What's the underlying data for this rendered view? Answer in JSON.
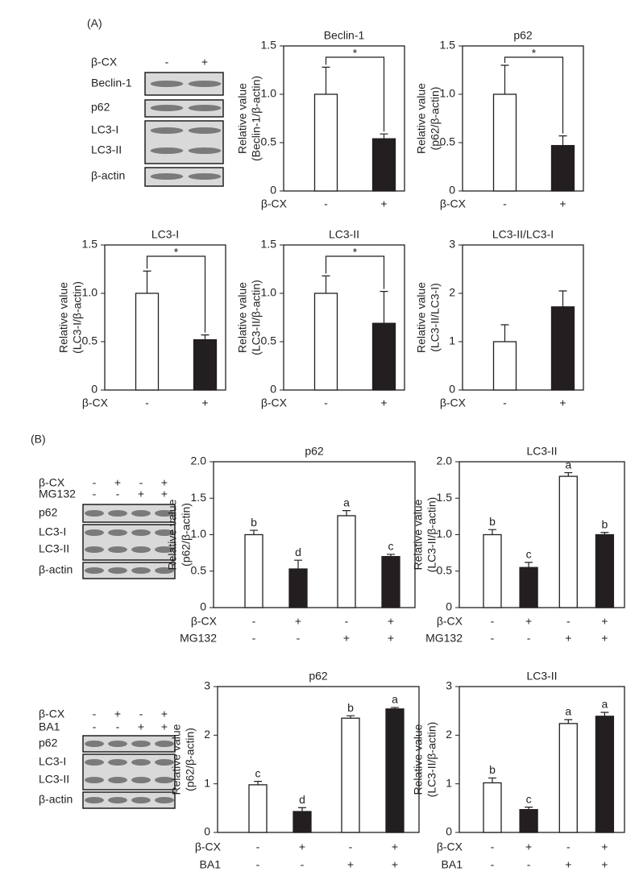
{
  "panels": [
    {
      "label": "(A)"
    },
    {
      "label": "(B)"
    }
  ],
  "blots": [
    {
      "conditions": [
        {
          "name": "β-CX",
          "signs": [
            "-",
            "+"
          ]
        }
      ],
      "bands": [
        "Beclin-1",
        "p62",
        "LC3-I",
        "LC3-II",
        "β-actin"
      ]
    },
    {
      "conditions": [
        {
          "name": "β-CX",
          "signs": [
            "-",
            "+",
            "-",
            "+"
          ]
        },
        {
          "name": "MG132",
          "signs": [
            "-",
            "-",
            "+",
            "+"
          ]
        }
      ],
      "bands": [
        "p62",
        "LC3-I",
        "LC3-II",
        "β-actin"
      ]
    },
    {
      "conditions": [
        {
          "name": "β-CX",
          "signs": [
            "-",
            "+",
            "-",
            "+"
          ]
        },
        {
          "name": "BA1",
          "signs": [
            "-",
            "-",
            "+",
            "+"
          ]
        }
      ],
      "bands": [
        "p62",
        "LC3-I",
        "LC3-II",
        "β-actin"
      ]
    }
  ],
  "chart_data": [
    {
      "type": "bar",
      "title": "Beclin-1",
      "y_label": [
        "Relative value",
        "(Beclin-1/β-actin)"
      ],
      "conditions": [
        {
          "name": "β-CX",
          "signs": [
            "-",
            "+"
          ]
        }
      ],
      "values": [
        1.0,
        0.54
      ],
      "errors": [
        0.28,
        0.05
      ],
      "colors": [
        "#ffffff",
        "#231f20"
      ],
      "ylim": [
        0,
        1.5
      ],
      "yticks": [
        0,
        0.5,
        {
          "value": 1,
          "label": "1.0"
        },
        1.5
      ],
      "significance": "*"
    },
    {
      "type": "bar",
      "title": "p62",
      "y_label": [
        "Relative value",
        "(p62/β-actin)"
      ],
      "conditions": [
        {
          "name": "β-CX",
          "signs": [
            "-",
            "+"
          ]
        }
      ],
      "values": [
        1.0,
        0.47
      ],
      "errors": [
        0.3,
        0.1
      ],
      "colors": [
        "#ffffff",
        "#231f20"
      ],
      "ylim": [
        0,
        1.5
      ],
      "yticks": [
        0,
        0.5,
        {
          "value": 1,
          "label": "1.0"
        },
        1.5
      ],
      "significance": "*"
    },
    {
      "type": "bar",
      "title": "LC3-I",
      "y_label": [
        "Relative value",
        "(LC3-I/β-actin)"
      ],
      "conditions": [
        {
          "name": "β-CX",
          "signs": [
            "-",
            "+"
          ]
        }
      ],
      "values": [
        1.0,
        0.52
      ],
      "errors": [
        0.23,
        0.05
      ],
      "colors": [
        "#ffffff",
        "#231f20"
      ],
      "ylim": [
        0,
        1.5
      ],
      "yticks": [
        0,
        0.5,
        {
          "value": 1,
          "label": "1.0"
        },
        1.5
      ],
      "significance": "*"
    },
    {
      "type": "bar",
      "title": "LC3-II",
      "y_label": [
        "Relative value",
        "(LC3-II/β-actin)"
      ],
      "conditions": [
        {
          "name": "β-CX",
          "signs": [
            "-",
            "+"
          ]
        }
      ],
      "values": [
        1.0,
        0.69
      ],
      "errors": [
        0.18,
        0.33
      ],
      "colors": [
        "#ffffff",
        "#231f20"
      ],
      "ylim": [
        0,
        1.5
      ],
      "yticks": [
        0,
        0.5,
        {
          "value": 1,
          "label": "1.0"
        },
        1.5
      ],
      "significance": "*"
    },
    {
      "type": "bar",
      "title": "LC3-II/LC3-I",
      "y_label": [
        "Relative value",
        "(LC3-II/LC3-I)"
      ],
      "conditions": [
        {
          "name": "β-CX",
          "signs": [
            "-",
            "+"
          ]
        }
      ],
      "values": [
        1.0,
        1.72
      ],
      "errors": [
        0.35,
        0.33
      ],
      "colors": [
        "#ffffff",
        "#231f20"
      ],
      "ylim": [
        0,
        3
      ],
      "yticks": [
        0,
        1,
        2,
        3
      ]
    },
    {
      "type": "bar",
      "title": "p62",
      "y_label": [
        "Relative value",
        "(p62/β-actin)"
      ],
      "conditions": [
        {
          "name": "β-CX",
          "signs": [
            "-",
            "+",
            "-",
            "+"
          ]
        },
        {
          "name": "MG132",
          "signs": [
            "-",
            "-",
            "+",
            "+"
          ]
        }
      ],
      "values": [
        1.0,
        0.53,
        1.26,
        0.7
      ],
      "errors": [
        0.06,
        0.12,
        0.07,
        0.03
      ],
      "annotations": [
        "b",
        "d",
        "a",
        "c"
      ],
      "colors": [
        "#ffffff",
        "#231f20",
        "#ffffff",
        "#231f20"
      ],
      "ylim": [
        0,
        2
      ],
      "yticks": [
        0,
        0.5,
        {
          "value": 1,
          "label": "1.0"
        },
        1.5,
        {
          "value": 2,
          "label": "2.0"
        }
      ]
    },
    {
      "type": "bar",
      "title": "LC3-II",
      "y_label": [
        "Relative value",
        "(LC3-II/β-actin)"
      ],
      "conditions": [
        {
          "name": "β-CX",
          "signs": [
            "-",
            "+",
            "-",
            "+"
          ]
        },
        {
          "name": "MG132",
          "signs": [
            "-",
            "-",
            "+",
            "+"
          ]
        }
      ],
      "values": [
        1.0,
        0.55,
        1.8,
        1.0
      ],
      "errors": [
        0.07,
        0.07,
        0.05,
        0.03
      ],
      "annotations": [
        "b",
        "c",
        "a",
        "b"
      ],
      "colors": [
        "#ffffff",
        "#231f20",
        "#ffffff",
        "#231f20"
      ],
      "ylim": [
        0,
        2
      ],
      "yticks": [
        0,
        0.5,
        {
          "value": 1,
          "label": "1.0"
        },
        1.5,
        {
          "value": 2,
          "label": "2.0"
        }
      ]
    },
    {
      "type": "bar",
      "title": "p62",
      "y_label": [
        "Relative value",
        "(p62/β-actin)"
      ],
      "conditions": [
        {
          "name": "β-CX",
          "signs": [
            "-",
            "+",
            "-",
            "+"
          ]
        },
        {
          "name": "BA1",
          "signs": [
            "-",
            "-",
            "+",
            "+"
          ]
        }
      ],
      "values": [
        0.98,
        0.43,
        2.35,
        2.54
      ],
      "errors": [
        0.07,
        0.08,
        0.05,
        0.03
      ],
      "annotations": [
        "c",
        "d",
        "b",
        "a"
      ],
      "colors": [
        "#ffffff",
        "#231f20",
        "#ffffff",
        "#231f20"
      ],
      "ylim": [
        0,
        3
      ],
      "yticks": [
        0,
        1,
        2,
        3
      ]
    },
    {
      "type": "bar",
      "title": "LC3-II",
      "y_label": [
        "Relative value",
        "(LC3-II/β-actin)"
      ],
      "conditions": [
        {
          "name": "β-CX",
          "signs": [
            "-",
            "+",
            "-",
            "+"
          ]
        },
        {
          "name": "BA1",
          "signs": [
            "-",
            "-",
            "+",
            "+"
          ]
        }
      ],
      "values": [
        1.02,
        0.47,
        2.24,
        2.39
      ],
      "errors": [
        0.1,
        0.05,
        0.08,
        0.08
      ],
      "annotations": [
        "b",
        "c",
        "a",
        "a"
      ],
      "colors": [
        "#ffffff",
        "#231f20",
        "#ffffff",
        "#231f20"
      ],
      "ylim": [
        0,
        3
      ],
      "yticks": [
        0,
        1,
        2,
        3
      ]
    }
  ]
}
